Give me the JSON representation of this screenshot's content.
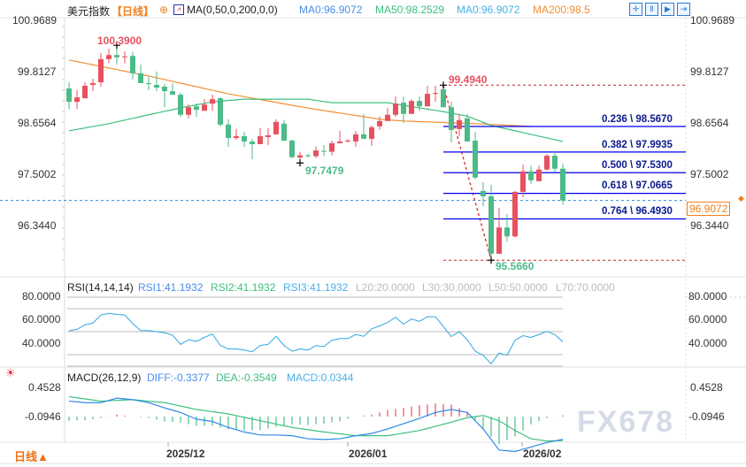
{
  "header": {
    "title": "美元指数",
    "period": "【日线】",
    "ma_label": "MA(0,50,0,200,0,0)",
    "ma0": "MA0:96.9072",
    "ma50": "MA50:98.2529",
    "ma0b": "MA0:96.9072",
    "ma200": "MA200:98.5"
  },
  "toolbar_icons": [
    "crosshair-icon",
    "zoom-in-icon",
    "step-forward-icon",
    "go-end-icon"
  ],
  "price_axis": [
    "100.9689",
    "99.8127",
    "98.6564",
    "97.5002",
    "96.3440"
  ],
  "current_price": "96.9072",
  "annotations": {
    "high1": "100.3900",
    "low1": "97.7479",
    "high2": "99.4940",
    "low2": "95.5660"
  },
  "fibonacci": [
    {
      "label": "0.236 \\ 98.5670",
      "value": 98.567
    },
    {
      "label": "0.382 \\ 97.9935",
      "value": 97.9935
    },
    {
      "label": "0.500 \\ 97.5300",
      "value": 97.53
    },
    {
      "label": "0.618 \\ 97.0665",
      "value": 97.0665
    },
    {
      "label": "0.764 \\ 96.4930",
      "value": 96.493
    }
  ],
  "rsi": {
    "title": "RSI(14,14,14)",
    "rsi1": "RSI1:41.1932",
    "rsi2": "RSI2:41.1932",
    "rsi3": "RSI3:41.1932",
    "l20": "L20:20.0000",
    "l30": "L30:30.0000",
    "l50": "L50:50.0000",
    "l70": "L70:70.0000",
    "axis": [
      "80.0000",
      "60.0000",
      "40.0000"
    ]
  },
  "macd": {
    "title": "MACD(26,12,9)",
    "diff": "DIFF:-0.3377",
    "dea": "DEA:-0.3549",
    "macd": "MACD:0.0344",
    "axis": [
      "0.4528",
      "-0.0946"
    ]
  },
  "x_axis": [
    "2025/12",
    "2026/01",
    "2026/02"
  ],
  "period_button": "日线▲",
  "watermark": "FX678",
  "colors": {
    "up": "#e8505f",
    "down": "#4dba87",
    "ma50": "#3cc080",
    "ma200": "#f39035",
    "fib": "#0000ee",
    "rsi": "#2ea7e0",
    "diff": "#2f8be6",
    "dea": "#3cc080"
  },
  "chart_data": {
    "type": "candlestick",
    "ohlc": [
      [
        99.42,
        99.12,
        99.56,
        98.96
      ],
      [
        99.12,
        99.22,
        99.38,
        98.96
      ],
      [
        99.2,
        99.48,
        99.56,
        99.2
      ],
      [
        99.5,
        99.54,
        99.64,
        99.36
      ],
      [
        99.56,
        100.08,
        100.22,
        99.46
      ],
      [
        100.08,
        100.17,
        100.31,
        99.99
      ],
      [
        100.17,
        100.12,
        100.39,
        99.96
      ],
      [
        100.12,
        100.14,
        100.25,
        99.98
      ],
      [
        100.15,
        99.76,
        100.24,
        99.62
      ],
      [
        99.76,
        99.54,
        99.96,
        99.54
      ],
      [
        99.54,
        99.52,
        99.68,
        99.38
      ],
      [
        99.5,
        99.44,
        99.8,
        99.36
      ],
      [
        99.46,
        99.36,
        99.52,
        99.0
      ],
      [
        99.36,
        99.28,
        99.54,
        99.28
      ],
      [
        99.28,
        98.83,
        99.32,
        98.78
      ],
      [
        98.83,
        99.0,
        99.06,
        98.75
      ],
      [
        99.02,
        98.94,
        99.08,
        98.78
      ],
      [
        98.92,
        99.06,
        99.18,
        98.92
      ],
      [
        99.08,
        99.18,
        99.28,
        98.92
      ],
      [
        99.2,
        98.61,
        99.22,
        98.57
      ],
      [
        98.61,
        98.31,
        98.73,
        98.11
      ],
      [
        98.31,
        98.35,
        98.51,
        98.27
      ],
      [
        98.35,
        98.23,
        98.45,
        98.11
      ],
      [
        98.23,
        98.17,
        98.29,
        97.83
      ],
      [
        98.17,
        98.35,
        98.53,
        98.17
      ],
      [
        98.33,
        98.37,
        98.53,
        98.15
      ],
      [
        98.39,
        98.67,
        98.73,
        98.39
      ],
      [
        98.63,
        98.25,
        98.71,
        98.25
      ],
      [
        98.25,
        97.88,
        98.27,
        97.85
      ],
      [
        97.87,
        97.92,
        98.0,
        97.7479
      ],
      [
        97.92,
        97.9,
        97.95,
        97.87
      ],
      [
        97.9,
        98.03,
        98.12,
        97.86
      ],
      [
        98.02,
        98.0,
        98.15,
        97.9
      ],
      [
        98.0,
        98.19,
        98.25,
        97.92
      ],
      [
        98.19,
        98.23,
        98.47,
        98.19
      ],
      [
        98.23,
        98.25,
        98.29,
        98.21
      ],
      [
        98.23,
        98.39,
        98.47,
        98.11
      ],
      [
        98.39,
        98.29,
        98.85,
        98.29
      ],
      [
        98.29,
        98.55,
        98.59,
        98.13
      ],
      [
        98.57,
        98.69,
        98.79,
        98.49
      ],
      [
        98.69,
        98.83,
        98.98,
        98.69
      ],
      [
        98.83,
        99.08,
        99.24,
        98.78
      ],
      [
        99.1,
        98.85,
        99.24,
        98.65
      ],
      [
        98.85,
        99.14,
        99.18,
        98.85
      ],
      [
        99.14,
        99.02,
        99.24,
        98.92
      ],
      [
        99.02,
        99.3,
        99.48,
        99.02
      ],
      [
        99.3,
        99.32,
        99.48,
        99.12
      ],
      [
        99.4,
        99.0,
        99.494,
        99.0
      ],
      [
        99.0,
        98.49,
        99.12,
        98.21
      ],
      [
        98.51,
        98.71,
        98.85,
        98.35
      ],
      [
        98.75,
        98.23,
        98.85,
        98.23
      ],
      [
        98.25,
        97.42,
        98.45,
        97.38
      ],
      [
        97.12,
        97.0,
        97.32,
        96.78
      ],
      [
        97.0,
        95.71,
        97.26,
        95.566
      ],
      [
        95.71,
        96.3,
        96.74,
        95.71
      ],
      [
        96.3,
        96.1,
        96.6,
        95.98
      ],
      [
        96.1,
        97.1,
        97.12,
        96.08
      ],
      [
        97.1,
        97.56,
        97.71,
        96.98
      ],
      [
        97.56,
        97.36,
        97.69,
        97.28
      ],
      [
        97.34,
        97.6,
        97.69,
        97.34
      ],
      [
        97.6,
        97.91,
        97.95,
        97.58
      ],
      [
        97.91,
        97.62,
        98.01,
        97.54
      ],
      [
        97.62,
        96.9072,
        97.73,
        96.81
      ]
    ],
    "ma50": [
      [
        0,
        98.47
      ],
      [
        5,
        98.63
      ],
      [
        10,
        98.83
      ],
      [
        15,
        99.02
      ],
      [
        18,
        99.12
      ],
      [
        22,
        99.18
      ],
      [
        30,
        99.18
      ],
      [
        33,
        99.1
      ],
      [
        40,
        99.1
      ],
      [
        47,
        98.9
      ],
      [
        50,
        98.8
      ],
      [
        53,
        98.59
      ],
      [
        62,
        98.23
      ]
    ],
    "ma200": [
      [
        0,
        100.06
      ],
      [
        10,
        99.7
      ],
      [
        20,
        99.3
      ],
      [
        30,
        98.98
      ],
      [
        39,
        98.73
      ],
      [
        42,
        98.69
      ],
      [
        51,
        98.63
      ],
      [
        58,
        98.57
      ]
    ],
    "ylim": [
      95.4,
      101.0
    ],
    "rsi": [
      50.75,
      52,
      56,
      57.5,
      64.5,
      66,
      65,
      64.5,
      57,
      51,
      51,
      50,
      49,
      47,
      39,
      43,
      41.5,
      45,
      48,
      38,
      35,
      35,
      34,
      32.5,
      38,
      39,
      46,
      38,
      33,
      35,
      34,
      38,
      37,
      42.5,
      44,
      44,
      47.5,
      46,
      52.5,
      55,
      58,
      62.5,
      56.5,
      61,
      59,
      63,
      63,
      54.5,
      45.75,
      50,
      43,
      33,
      29.5,
      22,
      31.5,
      29.5,
      42.5,
      46.5,
      45,
      47.5,
      50.25,
      47.5,
      41.19
    ],
    "rsi_levels": [
      20,
      30,
      50,
      70,
      80
    ],
    "diff": [
      [
        0,
        0.17
      ],
      [
        2,
        0.15
      ],
      [
        4,
        0.15
      ],
      [
        6,
        0.21
      ],
      [
        8,
        0.19
      ],
      [
        10,
        0.15
      ],
      [
        12,
        0.08
      ],
      [
        14,
        0.02
      ],
      [
        16,
        -0.07
      ],
      [
        18,
        -0.1
      ],
      [
        20,
        -0.18
      ],
      [
        22,
        -0.24
      ],
      [
        24,
        -0.28
      ],
      [
        26,
        -0.28
      ],
      [
        28,
        -0.29
      ],
      [
        30,
        -0.33
      ],
      [
        32,
        -0.34
      ],
      [
        34,
        -0.33
      ],
      [
        36,
        -0.29
      ],
      [
        38,
        -0.26
      ],
      [
        40,
        -0.2
      ],
      [
        42,
        -0.13
      ],
      [
        44,
        -0.06
      ],
      [
        46,
        0.02
      ],
      [
        48,
        0.06
      ],
      [
        50,
        0.02
      ],
      [
        52,
        -0.2
      ],
      [
        54,
        -0.48
      ],
      [
        56,
        -0.5
      ],
      [
        58,
        -0.44
      ],
      [
        60,
        -0.38
      ],
      [
        62,
        -0.3377
      ]
    ],
    "dea": [
      [
        0,
        0.23
      ],
      [
        4,
        0.17
      ],
      [
        8,
        0.19
      ],
      [
        12,
        0.15
      ],
      [
        16,
        0.06
      ],
      [
        20,
        0.0
      ],
      [
        24,
        -0.09
      ],
      [
        28,
        -0.18
      ],
      [
        32,
        -0.24
      ],
      [
        36,
        -0.29
      ],
      [
        40,
        -0.29
      ],
      [
        44,
        -0.22
      ],
      [
        48,
        -0.11
      ],
      [
        50,
        -0.05
      ],
      [
        52,
        -0.02
      ],
      [
        54,
        -0.09
      ],
      [
        56,
        -0.22
      ],
      [
        58,
        -0.33
      ],
      [
        60,
        -0.36
      ],
      [
        62,
        -0.3549
      ]
    ]
  }
}
